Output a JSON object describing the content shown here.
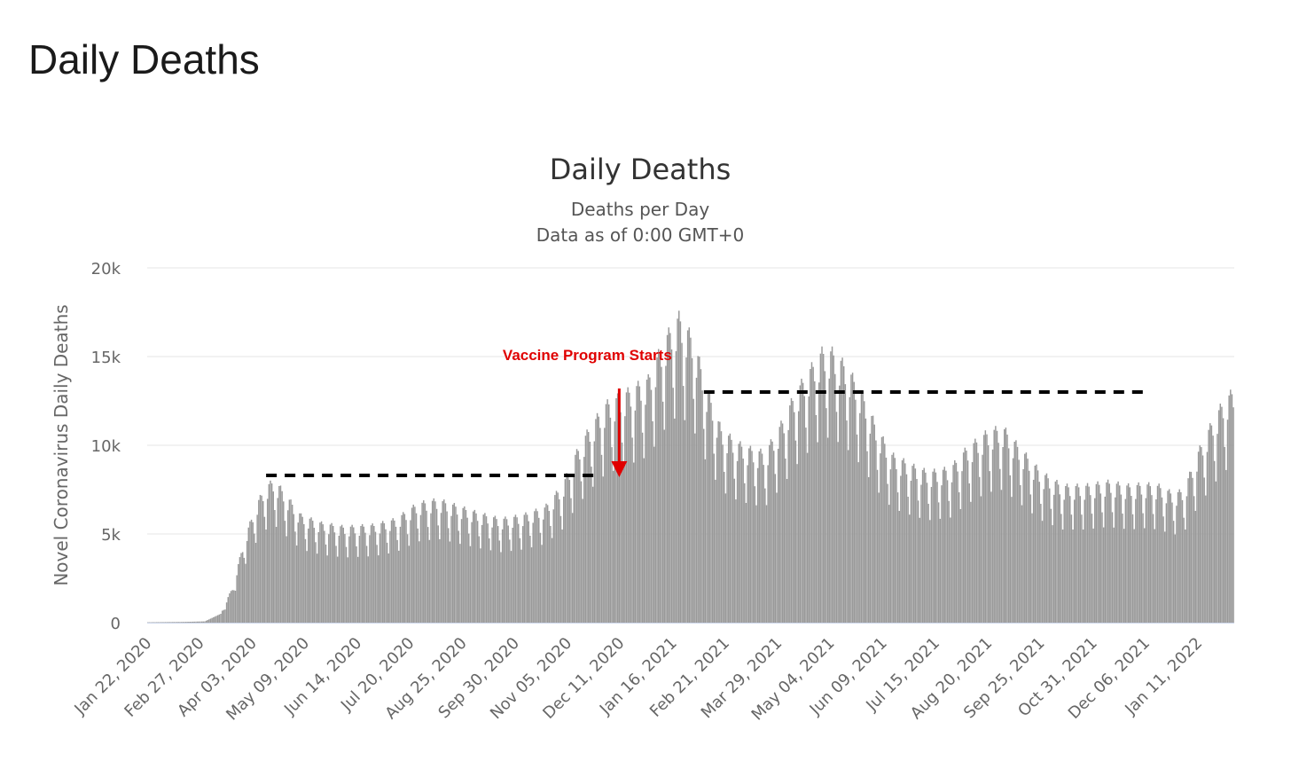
{
  "page": {
    "heading": "Daily Deaths"
  },
  "colors": {
    "bar": "#999999",
    "grid": "#e6e6e6",
    "axis": "#ccd6eb",
    "annotation": "#e00000",
    "dashed_line": "#000000"
  },
  "chart_data": {
    "type": "bar",
    "title": "Daily Deaths",
    "subtitle_lines": [
      "Deaths per Day",
      "Data as of 0:00 GMT+0"
    ],
    "ylabel": "Novel Coronavirus Daily Deaths",
    "xlabel": "",
    "ylim": [
      0,
      20000
    ],
    "yticks": [
      0,
      5000,
      10000,
      15000,
      20000
    ],
    "ytick_labels": [
      "0",
      "5k",
      "10k",
      "15k",
      "20k"
    ],
    "x_start": "2020-01-22",
    "x_end": "2022-02-04",
    "xtick_labels": [
      "Jan 22, 2020",
      "Feb 27, 2020",
      "Apr 03, 2020",
      "May 09, 2020",
      "Jun 14, 2020",
      "Jul 20, 2020",
      "Aug 25, 2020",
      "Sep 30, 2020",
      "Nov 05, 2020",
      "Dec 11, 2020",
      "Jan 16, 2021",
      "Feb 21, 2021",
      "Mar 29, 2021",
      "May 04, 2021",
      "Jun 09, 2021",
      "Jul 15, 2021",
      "Aug 20, 2021",
      "Sep 25, 2021",
      "Oct 31, 2021",
      "Dec 06, 2021",
      "Jan 11, 2022"
    ],
    "grid": true,
    "legend": "none",
    "trend": [
      [
        "2020-01-22",
        20
      ],
      [
        "2020-02-15",
        40
      ],
      [
        "2020-03-01",
        70
      ],
      [
        "2020-03-12",
        500
      ],
      [
        "2020-03-20",
        1800
      ],
      [
        "2020-03-28",
        4200
      ],
      [
        "2020-04-05",
        6000
      ],
      [
        "2020-04-12",
        7000
      ],
      [
        "2020-04-18",
        7300
      ],
      [
        "2020-04-26",
        6500
      ],
      [
        "2020-05-06",
        5500
      ],
      [
        "2020-05-20",
        5100
      ],
      [
        "2020-06-05",
        4900
      ],
      [
        "2020-06-25",
        5000
      ],
      [
        "2020-07-10",
        5300
      ],
      [
        "2020-07-25",
        6100
      ],
      [
        "2020-08-08",
        6300
      ],
      [
        "2020-08-20",
        6000
      ],
      [
        "2020-09-05",
        5600
      ],
      [
        "2020-09-20",
        5300
      ],
      [
        "2020-10-05",
        5500
      ],
      [
        "2020-10-20",
        5900
      ],
      [
        "2020-11-01",
        7000
      ],
      [
        "2020-11-10",
        8600
      ],
      [
        "2020-11-20",
        10000
      ],
      [
        "2020-12-01",
        11200
      ],
      [
        "2020-12-15",
        11800
      ],
      [
        "2020-12-30",
        12500
      ],
      [
        "2021-01-10",
        14500
      ],
      [
        "2021-01-20",
        15700
      ],
      [
        "2021-01-30",
        14500
      ],
      [
        "2021-02-08",
        12000
      ],
      [
        "2021-02-18",
        9900
      ],
      [
        "2021-03-01",
        9200
      ],
      [
        "2021-03-10",
        8900
      ],
      [
        "2021-03-20",
        8700
      ],
      [
        "2021-04-01",
        10300
      ],
      [
        "2021-04-10",
        11800
      ],
      [
        "2021-04-20",
        13000
      ],
      [
        "2021-04-28",
        13900
      ],
      [
        "2021-05-05",
        13900
      ],
      [
        "2021-05-15",
        13100
      ],
      [
        "2021-05-25",
        11800
      ],
      [
        "2021-06-05",
        9900
      ],
      [
        "2021-06-15",
        8600
      ],
      [
        "2021-06-30",
        8000
      ],
      [
        "2021-07-10",
        7700
      ],
      [
        "2021-07-25",
        7900
      ],
      [
        "2021-08-05",
        8900
      ],
      [
        "2021-08-20",
        9800
      ],
      [
        "2021-08-30",
        10000
      ],
      [
        "2021-09-10",
        9000
      ],
      [
        "2021-09-25",
        7700
      ],
      [
        "2021-10-10",
        7000
      ],
      [
        "2021-10-25",
        7000
      ],
      [
        "2021-11-10",
        7200
      ],
      [
        "2021-11-25",
        7000
      ],
      [
        "2021-12-05",
        7100
      ],
      [
        "2021-12-15",
        7000
      ],
      [
        "2021-12-25",
        6600
      ],
      [
        "2022-01-01",
        6800
      ],
      [
        "2022-01-10",
        8600
      ],
      [
        "2022-01-20",
        10200
      ],
      [
        "2022-01-28",
        11300
      ],
      [
        "2022-02-04",
        11900
      ]
    ],
    "weekly_pattern": [
      0.75,
      0.99,
      1.1,
      1.12,
      1.09,
      1.02,
      0.87
    ],
    "annotations": [
      {
        "text": "Vaccine Program Starts",
        "arrow_date": "2020-12-10",
        "arrow_from": 13200,
        "arrow_to": 8200
      }
    ],
    "reference_lines": [
      {
        "style": "dashed",
        "y": 8300,
        "from": "2020-04-12",
        "to": "2020-11-25"
      },
      {
        "style": "dashed",
        "y": 13000,
        "from": "2021-02-06",
        "to": "2021-12-05"
      }
    ]
  }
}
